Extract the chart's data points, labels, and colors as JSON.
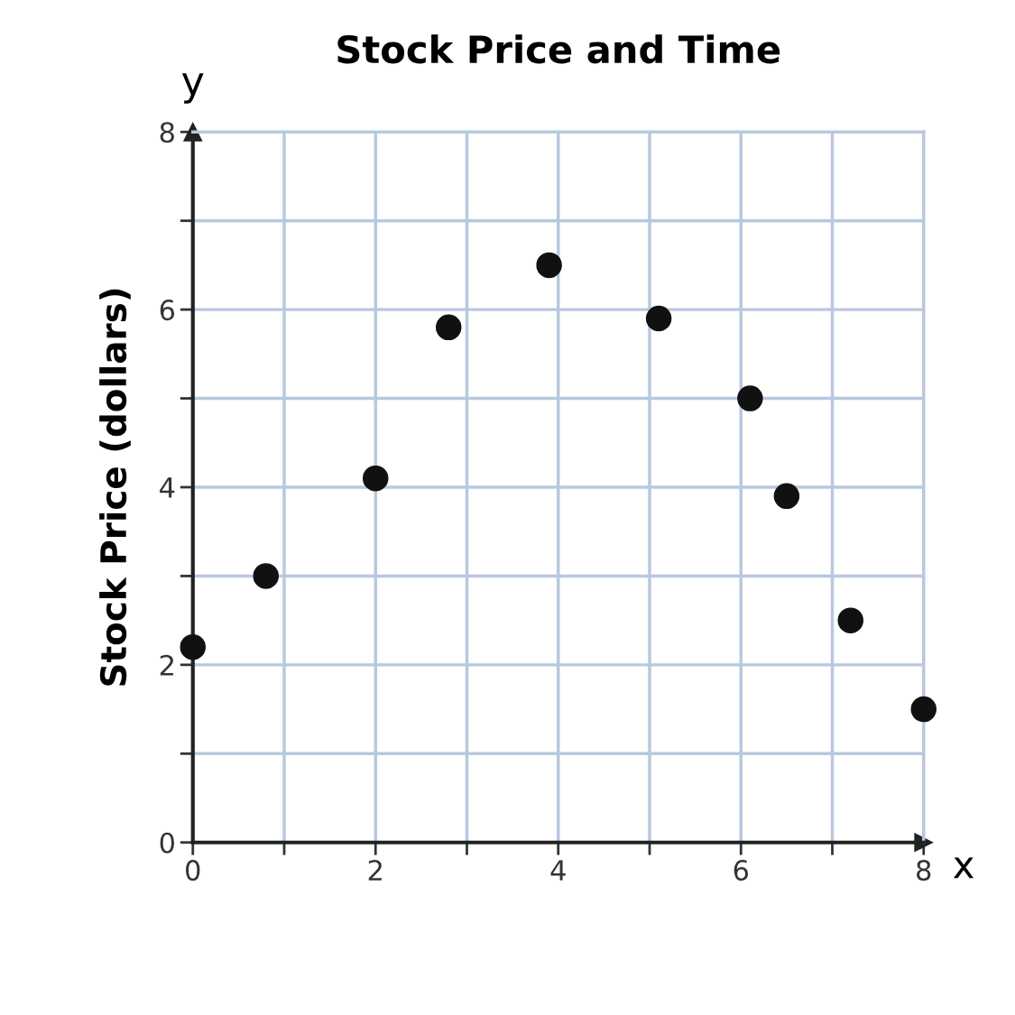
{
  "chart_data": {
    "type": "scatter",
    "title": "Stock Price and Time",
    "xlabel": "x",
    "ylabel": "Stock Price (dollars)",
    "annotations": [
      "y"
    ],
    "x": [
      0,
      0.8,
      2.0,
      2.8,
      3.9,
      5.1,
      6.1,
      6.5,
      7.2,
      8.0
    ],
    "series": [
      {
        "color": "#111111",
        "values": [
          2.2,
          3.0,
          4.1,
          5.8,
          6.5,
          5.9,
          5.0,
          3.9,
          2.5,
          1.5
        ]
      }
    ],
    "xlim": [
      0,
      8
    ],
    "ylim": [
      0,
      8
    ],
    "xticks": [
      0,
      {
        "value": 1,
        "label": null
      },
      2,
      {
        "value": 3,
        "label": null
      },
      4,
      {
        "value": 5,
        "label": null
      },
      6,
      {
        "value": 7,
        "label": null
      },
      8
    ],
    "yticks": [
      0,
      {
        "value": 1,
        "label": null
      },
      2,
      {
        "value": 3,
        "label": null
      },
      4,
      {
        "value": 5,
        "label": null
      },
      6,
      {
        "value": 7,
        "label": null
      },
      8
    ],
    "grid": true,
    "marker": "circle",
    "legend": false
  }
}
